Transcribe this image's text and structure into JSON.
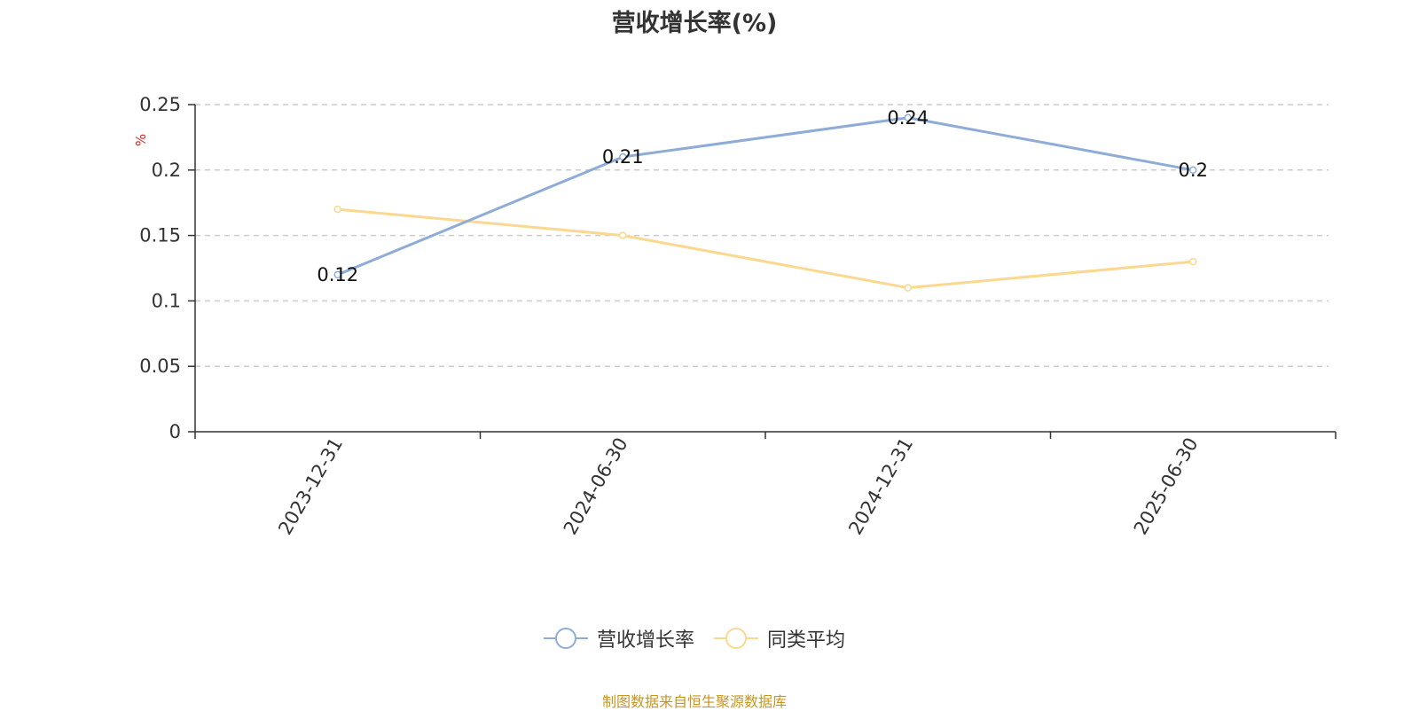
{
  "chart_data": {
    "type": "line",
    "title": "营收增长率(%)",
    "ylabel": "%",
    "xlabel": "",
    "categories": [
      "2023-12-31",
      "2024-06-30",
      "2024-12-31",
      "2025-06-30"
    ],
    "ylim": [
      0,
      0.25
    ],
    "yticks": [
      "0",
      "0.05",
      "0.1",
      "0.15",
      "0.2",
      "0.25"
    ],
    "grid": true,
    "legend_position": "bottom",
    "series": [
      {
        "name": "营收增长率",
        "values": [
          0.12,
          0.21,
          0.24,
          0.2
        ],
        "data_labels": [
          "0.12",
          "0.21",
          "0.24",
          "0.2"
        ],
        "color": "#8eacd6"
      },
      {
        "name": "同类平均",
        "values": [
          0.17,
          0.15,
          0.11,
          0.13
        ],
        "color": "#fad890"
      }
    ]
  },
  "source_note": "制图数据来自恒生聚源数据库"
}
